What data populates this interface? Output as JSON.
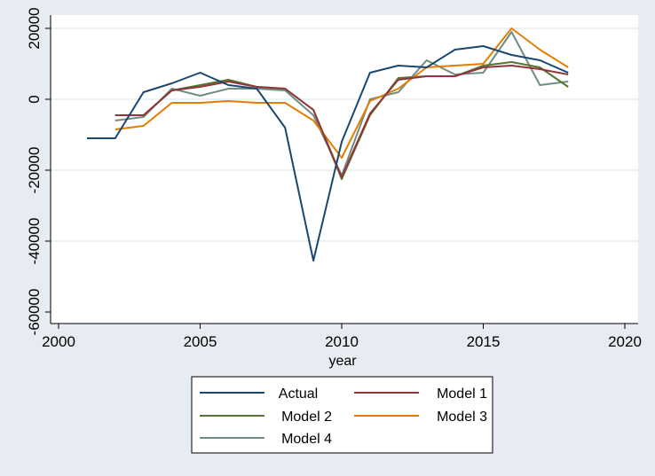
{
  "chart_data": {
    "type": "line",
    "title": "",
    "xlabel": "year",
    "ylabel": "",
    "xlim": [
      2000,
      2020
    ],
    "ylim": [
      -60000,
      20000
    ],
    "x_ticks": [
      2000,
      2005,
      2010,
      2015,
      2020
    ],
    "y_ticks": [
      -60000,
      -40000,
      -20000,
      0,
      20000
    ],
    "grid": "horizontal",
    "legend_position": "bottom",
    "series": [
      {
        "name": "Actual",
        "color": "#1a476f",
        "x": [
          2001,
          2002,
          2003,
          2004,
          2005,
          2006,
          2007,
          2008,
          2009,
          2010,
          2011,
          2012,
          2013,
          2014,
          2015,
          2016,
          2017,
          2018
        ],
        "y": [
          -11000,
          -11000,
          2000,
          4500,
          7500,
          4000,
          3000,
          -8000,
          -45500,
          -12000,
          7500,
          9500,
          9000,
          14000,
          15000,
          12500,
          11000,
          7500
        ]
      },
      {
        "name": "Model 1",
        "color": "#90353b",
        "x": [
          2002,
          2003,
          2004,
          2005,
          2006,
          2007,
          2008,
          2009,
          2010,
          2011,
          2012,
          2013,
          2014,
          2015,
          2016,
          2017,
          2018
        ],
        "y": [
          -4500,
          -4500,
          2500,
          3500,
          5000,
          3500,
          3000,
          -3000,
          -22000,
          -4000,
          5500,
          6500,
          6500,
          9000,
          9500,
          8500,
          7000
        ]
      },
      {
        "name": "Model 2",
        "color": "#55752f",
        "x": [
          2002,
          2003,
          2004,
          2005,
          2006,
          2007,
          2008,
          2009,
          2010,
          2011,
          2012,
          2013,
          2014,
          2015,
          2016,
          2017,
          2018
        ],
        "y": [
          -4500,
          -4500,
          2500,
          4000,
          5500,
          3500,
          3000,
          -3000,
          -22500,
          -4500,
          6000,
          6500,
          6500,
          9500,
          10500,
          9000,
          3500
        ]
      },
      {
        "name": "Model 3",
        "color": "#e37e00",
        "x": [
          2002,
          2003,
          2004,
          2005,
          2006,
          2007,
          2008,
          2009,
          2010,
          2011,
          2012,
          2013,
          2014,
          2015,
          2016,
          2017,
          2018
        ],
        "y": [
          -8500,
          -7500,
          -1000,
          -1000,
          -500,
          -1000,
          -1000,
          -6000,
          -16500,
          -500,
          3000,
          9000,
          9500,
          10000,
          20000,
          14000,
          9000
        ]
      },
      {
        "name": "Model 4",
        "color": "#6e8e84",
        "x": [
          2002,
          2003,
          2004,
          2005,
          2006,
          2007,
          2008,
          2009,
          2010,
          2011,
          2012,
          2013,
          2014,
          2015,
          2016,
          2017,
          2018
        ],
        "y": [
          -6000,
          -5000,
          3000,
          1000,
          3000,
          3000,
          2500,
          -4500,
          -21500,
          0,
          2000,
          11000,
          7000,
          7500,
          19000,
          4000,
          5000
        ]
      }
    ]
  }
}
